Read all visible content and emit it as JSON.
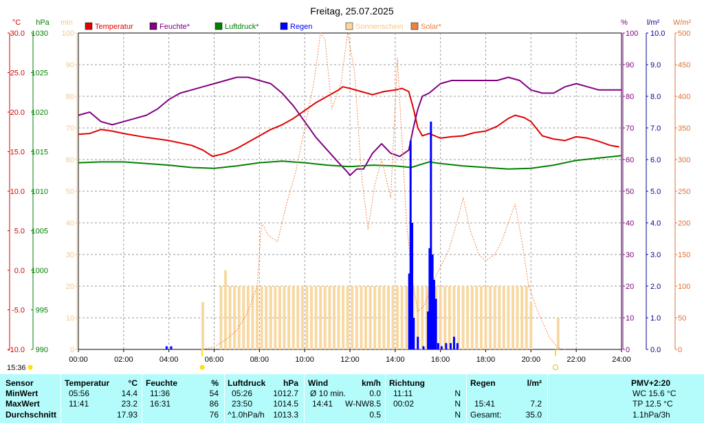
{
  "chart_data": {
    "type": "line",
    "title": "Freitag, 25.07.2025",
    "x_ticks": [
      "00:00",
      "02:00",
      "04:00",
      "06:00",
      "08:00",
      "10:00",
      "12:00",
      "14:00",
      "16:00",
      "18:00",
      "20:00",
      "22:00",
      "24:00"
    ],
    "axes": {
      "temp": {
        "unit": "°C",
        "min": -10,
        "max": 30,
        "ticks": [
          "30.0",
          "25.0",
          "20.0",
          "15.0",
          "10.0",
          "5.0",
          "0.0",
          "-5.0",
          "-10.0"
        ]
      },
      "press": {
        "unit": "hPa",
        "min": 990,
        "max": 1030,
        "ticks": [
          "1030",
          "1025",
          "1020",
          "1015",
          "1010",
          "1005",
          "1000",
          "995",
          "990"
        ]
      },
      "sun": {
        "unit": "min",
        "min": 0,
        "max": 100,
        "ticks": [
          "100",
          "90",
          "80",
          "70",
          "60",
          "50",
          "40",
          "30",
          "20",
          "10",
          "0"
        ]
      },
      "hum": {
        "unit": "%",
        "min": 0,
        "max": 100,
        "ticks": [
          "100",
          "90",
          "80",
          "70",
          "60",
          "50",
          "40",
          "30",
          "20",
          "10",
          "0"
        ]
      },
      "rain": {
        "unit": "l/m²",
        "min": 0,
        "max": 10,
        "ticks": [
          "10.0",
          "9.0",
          "8.0",
          "7.0",
          "6.0",
          "5.0",
          "4.0",
          "3.0",
          "2.0",
          "1.0",
          "0.0"
        ]
      },
      "solar": {
        "unit": "W/m²",
        "min": 0,
        "max": 500,
        "ticks": [
          "500",
          "450",
          "400",
          "350",
          "300",
          "250",
          "200",
          "150",
          "100",
          "50",
          "0"
        ]
      }
    },
    "legend": [
      {
        "label": "Temperatur",
        "color": "#e00000"
      },
      {
        "label": "Feuchte*",
        "color": "#800080"
      },
      {
        "label": "Luftdruck*",
        "color": "#008000"
      },
      {
        "label": "Regen",
        "color": "#0000ff"
      },
      {
        "label": "Sonnenschein",
        "color": "#f8d8a0"
      },
      {
        "label": "Solar*",
        "color": "#f08040"
      }
    ],
    "sunrise_label": "15:36",
    "series": [
      {
        "name": "Temperatur",
        "axis": "temp",
        "color": "#e00000",
        "points": [
          [
            0,
            17.2
          ],
          [
            0.5,
            17.3
          ],
          [
            1,
            17.8
          ],
          [
            1.5,
            17.6
          ],
          [
            2,
            17.3
          ],
          [
            3,
            16.8
          ],
          [
            4,
            16.4
          ],
          [
            5,
            15.8
          ],
          [
            5.5,
            15.2
          ],
          [
            5.93,
            14.4
          ],
          [
            6.5,
            14.8
          ],
          [
            7,
            15.4
          ],
          [
            7.5,
            16.2
          ],
          [
            8,
            17.0
          ],
          [
            8.5,
            17.8
          ],
          [
            9,
            18.4
          ],
          [
            9.5,
            19.2
          ],
          [
            10,
            20.2
          ],
          [
            10.5,
            21.2
          ],
          [
            11,
            22.0
          ],
          [
            11.5,
            22.8
          ],
          [
            11.68,
            23.2
          ],
          [
            12,
            23.0
          ],
          [
            12.5,
            22.6
          ],
          [
            13,
            22.2
          ],
          [
            13.5,
            22.6
          ],
          [
            14,
            22.8
          ],
          [
            14.3,
            23.0
          ],
          [
            14.6,
            22.6
          ],
          [
            14.8,
            20.5
          ],
          [
            15.0,
            18.0
          ],
          [
            15.2,
            17.0
          ],
          [
            15.5,
            17.3
          ],
          [
            16,
            16.7
          ],
          [
            16.5,
            16.9
          ],
          [
            17,
            17.0
          ],
          [
            17.5,
            17.4
          ],
          [
            18,
            17.6
          ],
          [
            18.5,
            18.2
          ],
          [
            19,
            19.2
          ],
          [
            19.3,
            19.6
          ],
          [
            19.7,
            19.3
          ],
          [
            20,
            18.8
          ],
          [
            20.5,
            17.0
          ],
          [
            21,
            16.6
          ],
          [
            21.5,
            16.4
          ],
          [
            22,
            16.9
          ],
          [
            22.5,
            16.7
          ],
          [
            23,
            16.3
          ],
          [
            23.5,
            15.8
          ],
          [
            23.9,
            15.6
          ]
        ]
      },
      {
        "name": "Feuchte*",
        "axis": "hum",
        "color": "#800080",
        "points": [
          [
            0,
            74
          ],
          [
            0.5,
            75
          ],
          [
            1,
            72
          ],
          [
            1.5,
            71
          ],
          [
            2,
            72
          ],
          [
            2.5,
            73
          ],
          [
            3,
            74
          ],
          [
            3.5,
            76
          ],
          [
            4,
            79
          ],
          [
            4.5,
            81
          ],
          [
            5,
            82
          ],
          [
            5.5,
            83
          ],
          [
            6,
            84
          ],
          [
            6.5,
            85
          ],
          [
            7,
            86
          ],
          [
            7.5,
            86
          ],
          [
            8,
            85
          ],
          [
            8.5,
            84
          ],
          [
            9,
            81
          ],
          [
            9.5,
            77
          ],
          [
            10,
            72
          ],
          [
            10.5,
            67
          ],
          [
            11,
            63
          ],
          [
            11.5,
            59
          ],
          [
            11.9,
            56
          ],
          [
            12,
            55
          ],
          [
            12.3,
            57
          ],
          [
            12.6,
            57
          ],
          [
            13,
            62
          ],
          [
            13.4,
            65
          ],
          [
            13.8,
            62
          ],
          [
            14.2,
            61
          ],
          [
            14.6,
            63
          ],
          [
            14.8,
            70
          ],
          [
            15.0,
            76
          ],
          [
            15.2,
            80
          ],
          [
            15.5,
            81
          ],
          [
            16,
            84
          ],
          [
            16.5,
            85
          ],
          [
            17,
            85
          ],
          [
            17.5,
            85
          ],
          [
            18,
            85
          ],
          [
            18.5,
            85
          ],
          [
            19,
            86
          ],
          [
            19.5,
            85
          ],
          [
            20,
            82
          ],
          [
            20.5,
            81
          ],
          [
            21,
            81
          ],
          [
            21.5,
            83
          ],
          [
            22,
            84
          ],
          [
            22.5,
            83
          ],
          [
            23,
            82
          ],
          [
            23.5,
            82
          ],
          [
            24,
            82
          ]
        ]
      },
      {
        "name": "Luftdruck*",
        "axis": "press",
        "color": "#008000",
        "points": [
          [
            0,
            1013.6
          ],
          [
            1,
            1013.7
          ],
          [
            2,
            1013.7
          ],
          [
            3,
            1013.5
          ],
          [
            4,
            1013.3
          ],
          [
            5,
            1013.0
          ],
          [
            6,
            1012.9
          ],
          [
            7,
            1013.2
          ],
          [
            8,
            1013.6
          ],
          [
            9,
            1013.8
          ],
          [
            10,
            1013.6
          ],
          [
            11,
            1013.3
          ],
          [
            12,
            1013.1
          ],
          [
            13,
            1013.3
          ],
          [
            14,
            1013.2
          ],
          [
            14.7,
            1013.0
          ],
          [
            15.5,
            1013.7
          ],
          [
            16,
            1013.5
          ],
          [
            17,
            1013.2
          ],
          [
            18,
            1013.0
          ],
          [
            19,
            1012.8
          ],
          [
            20,
            1012.9
          ],
          [
            21,
            1013.3
          ],
          [
            22,
            1013.9
          ],
          [
            23,
            1014.2
          ],
          [
            24,
            1014.5
          ]
        ]
      },
      {
        "name": "Solar*",
        "axis": "solar",
        "color": "#f08040",
        "dashed": true,
        "points": [
          [
            5.5,
            0
          ],
          [
            6,
            4
          ],
          [
            6.5,
            15
          ],
          [
            7,
            30
          ],
          [
            7.5,
            60
          ],
          [
            7.9,
            100
          ],
          [
            8.1,
            200
          ],
          [
            8.4,
            180
          ],
          [
            8.8,
            170
          ],
          [
            9.2,
            230
          ],
          [
            9.6,
            280
          ],
          [
            10,
            350
          ],
          [
            10.4,
            420
          ],
          [
            10.7,
            500
          ],
          [
            10.9,
            490
          ],
          [
            11.2,
            380
          ],
          [
            11.6,
            420
          ],
          [
            11.9,
            500
          ],
          [
            12.2,
            440
          ],
          [
            12.5,
            280
          ],
          [
            12.8,
            190
          ],
          [
            13.1,
            260
          ],
          [
            13.4,
            300
          ],
          [
            13.8,
            240
          ],
          [
            14.1,
            460
          ],
          [
            14.5,
            200
          ],
          [
            14.8,
            100
          ],
          [
            15.0,
            60
          ],
          [
            15.3,
            70
          ],
          [
            15.7,
            110
          ],
          [
            16,
            130
          ],
          [
            16.4,
            160
          ],
          [
            16.8,
            210
          ],
          [
            17.0,
            240
          ],
          [
            17.3,
            190
          ],
          [
            17.7,
            150
          ],
          [
            18,
            140
          ],
          [
            18.4,
            150
          ],
          [
            18.7,
            170
          ],
          [
            19.0,
            200
          ],
          [
            19.3,
            230
          ],
          [
            19.6,
            170
          ],
          [
            19.9,
            100
          ],
          [
            20.3,
            60
          ],
          [
            20.8,
            20
          ],
          [
            21.2,
            2
          ],
          [
            21.5,
            0
          ]
        ]
      }
    ],
    "rain": {
      "axis": "rain",
      "color": "#0000ff",
      "bars": [
        [
          3.9,
          0.1
        ],
        [
          4.1,
          0.1
        ],
        [
          14.62,
          2.4
        ],
        [
          14.68,
          6.6
        ],
        [
          14.75,
          4.0
        ],
        [
          14.82,
          1.0
        ],
        [
          15.0,
          0.4
        ],
        [
          15.25,
          0.1
        ],
        [
          15.45,
          1.2
        ],
        [
          15.52,
          3.2
        ],
        [
          15.58,
          7.2
        ],
        [
          15.65,
          3.0
        ],
        [
          15.72,
          2.2
        ],
        [
          15.8,
          1.6
        ],
        [
          15.9,
          0.2
        ],
        [
          16.05,
          0.1
        ],
        [
          16.25,
          0.2
        ],
        [
          16.45,
          0.2
        ],
        [
          16.6,
          0.4
        ],
        [
          16.75,
          0.2
        ]
      ]
    },
    "sunshine": {
      "axis": "sun",
      "color": "#f8d8a0",
      "bars": [
        [
          5.5,
          15
        ],
        [
          6.3,
          20
        ],
        [
          6.5,
          25
        ],
        [
          6.7,
          20
        ],
        [
          6.9,
          20
        ],
        [
          7.1,
          20
        ],
        [
          7.3,
          20
        ],
        [
          7.5,
          20
        ],
        [
          7.7,
          20
        ],
        [
          7.9,
          20
        ],
        [
          8.1,
          20
        ],
        [
          8.3,
          20
        ],
        [
          8.5,
          20
        ],
        [
          8.7,
          20
        ],
        [
          8.9,
          20
        ],
        [
          9.1,
          20
        ],
        [
          9.3,
          20
        ],
        [
          9.5,
          20
        ],
        [
          9.7,
          20
        ],
        [
          9.9,
          20
        ],
        [
          10.1,
          20
        ],
        [
          10.3,
          20
        ],
        [
          10.5,
          20
        ],
        [
          10.7,
          20
        ],
        [
          10.9,
          20
        ],
        [
          11.1,
          20
        ],
        [
          11.3,
          20
        ],
        [
          11.5,
          20
        ],
        [
          11.7,
          20
        ],
        [
          11.9,
          20
        ],
        [
          12.1,
          20
        ],
        [
          12.3,
          20
        ],
        [
          12.5,
          20
        ],
        [
          12.7,
          20
        ],
        [
          12.9,
          20
        ],
        [
          13.1,
          20
        ],
        [
          13.3,
          20
        ],
        [
          13.5,
          20
        ],
        [
          13.7,
          20
        ],
        [
          13.9,
          20
        ],
        [
          14.1,
          20
        ],
        [
          14.3,
          20
        ],
        [
          14.5,
          20
        ],
        [
          14.8,
          20
        ],
        [
          15.0,
          20
        ],
        [
          15.2,
          20
        ],
        [
          15.4,
          20
        ],
        [
          15.6,
          20
        ],
        [
          15.8,
          20
        ],
        [
          16.0,
          20
        ],
        [
          16.2,
          20
        ],
        [
          16.4,
          20
        ],
        [
          16.6,
          20
        ],
        [
          16.8,
          20
        ],
        [
          17.0,
          20
        ],
        [
          17.2,
          20
        ],
        [
          17.4,
          20
        ],
        [
          17.6,
          20
        ],
        [
          17.8,
          20
        ],
        [
          18.0,
          20
        ],
        [
          18.2,
          20
        ],
        [
          18.4,
          20
        ],
        [
          18.6,
          20
        ],
        [
          18.8,
          20
        ],
        [
          19.0,
          20
        ],
        [
          19.2,
          20
        ],
        [
          19.4,
          20
        ],
        [
          19.6,
          20
        ],
        [
          19.8,
          20
        ],
        [
          20.0,
          15
        ],
        [
          21.2,
          10
        ]
      ]
    }
  },
  "stats": {
    "headers": {
      "sensor": "Sensor",
      "temp": "Temperatur",
      "temp_unit": "°C",
      "hum": "Feuchte",
      "hum_unit": "%",
      "press": "Luftdruck",
      "press_unit": "hPa",
      "wind": "Wind",
      "wind_unit": "km/h",
      "dir": "Richtung",
      "rain": "Regen",
      "rain_unit": "l/m²",
      "pmv": "PMV+2:20"
    },
    "min": {
      "label": "MinWert",
      "temp_time": "05:56",
      "temp": "14.4",
      "hum_time": "11:36",
      "hum": "54",
      "press_time": "05:26",
      "press": "1012.7",
      "wind_time": "Ø 10 min.",
      "wind": "0.0",
      "dir_time": "11:11",
      "dir": "N",
      "pmv": "WC 15.6 °C"
    },
    "max": {
      "label": "MaxWert",
      "temp_time": "11:41",
      "temp": "23.2",
      "hum_time": "16:31",
      "hum": "86",
      "press_time": "23:50",
      "press": "1014.5",
      "wind_time": "14:41",
      "wind_dir": "W-NW",
      "wind": "8.5",
      "dir_time": "00:02",
      "dir": "N",
      "rain_time": "15:41",
      "rain": "7.2",
      "pmv": "TP 12.5 °C"
    },
    "avg": {
      "label": "Durchschnitt",
      "temp": "17.93",
      "hum": "76",
      "press_time": "^1.0hPa/h",
      "press": "1013.3",
      "wind": "0.5",
      "dir": "N",
      "rain_label": "Gesamt:",
      "rain": "35.0",
      "pmv": "1.1hPa/3h"
    }
  }
}
